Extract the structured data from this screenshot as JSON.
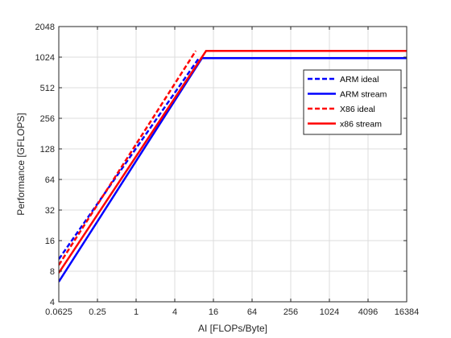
{
  "chart_data": {
    "type": "line",
    "xscale": "log2",
    "yscale": "log2",
    "xlabel": "AI [FLOPs/Byte]",
    "ylabel": "Performance [GFLOPS]",
    "xlim": [
      0.0625,
      16384
    ],
    "ylim": [
      4,
      2048
    ],
    "xticks": [
      {
        "value": 0.0625,
        "label": "0.0625"
      },
      {
        "value": 0.25,
        "label": "0.25"
      },
      {
        "value": 1,
        "label": "1"
      },
      {
        "value": 4,
        "label": "4"
      },
      {
        "value": 16,
        "label": "16"
      },
      {
        "value": 64,
        "label": "64"
      },
      {
        "value": 256,
        "label": "256"
      },
      {
        "value": 1024,
        "label": "1024"
      },
      {
        "value": 4096,
        "label": "4096"
      },
      {
        "value": 16384,
        "label": "16384"
      }
    ],
    "yticks": [
      {
        "value": 4,
        "label": "4"
      },
      {
        "value": 8,
        "label": "8"
      },
      {
        "value": 16,
        "label": "16"
      },
      {
        "value": 32,
        "label": "32"
      },
      {
        "value": 64,
        "label": "64"
      },
      {
        "value": 128,
        "label": "128"
      },
      {
        "value": 256,
        "label": "256"
      },
      {
        "value": 512,
        "label": "512"
      },
      {
        "value": 1024,
        "label": "1024"
      },
      {
        "value": 2048,
        "label": "2048"
      }
    ],
    "grid": true,
    "legend_position": "top-right",
    "series": [
      {
        "name": "ARM ideal",
        "color": "#0000ff",
        "dash": "dashed",
        "points": [
          [
            0.0625,
            10.5
          ],
          [
            9.5,
            1000
          ]
        ]
      },
      {
        "name": "ARM stream",
        "color": "#0000ff",
        "dash": "solid",
        "points": [
          [
            0.0625,
            6.3
          ],
          [
            10.6,
            1000
          ],
          [
            16384,
            1000
          ]
        ]
      },
      {
        "name": "X86 ideal",
        "color": "#ff0000",
        "dash": "dashed",
        "points": [
          [
            0.0625,
            9.2
          ],
          [
            8.5,
            1180
          ]
        ]
      },
      {
        "name": "x86 stream",
        "color": "#ff0000",
        "dash": "solid",
        "points": [
          [
            0.0625,
            7.7
          ],
          [
            12.3,
            1180
          ],
          [
            16384,
            1180
          ]
        ]
      }
    ]
  }
}
